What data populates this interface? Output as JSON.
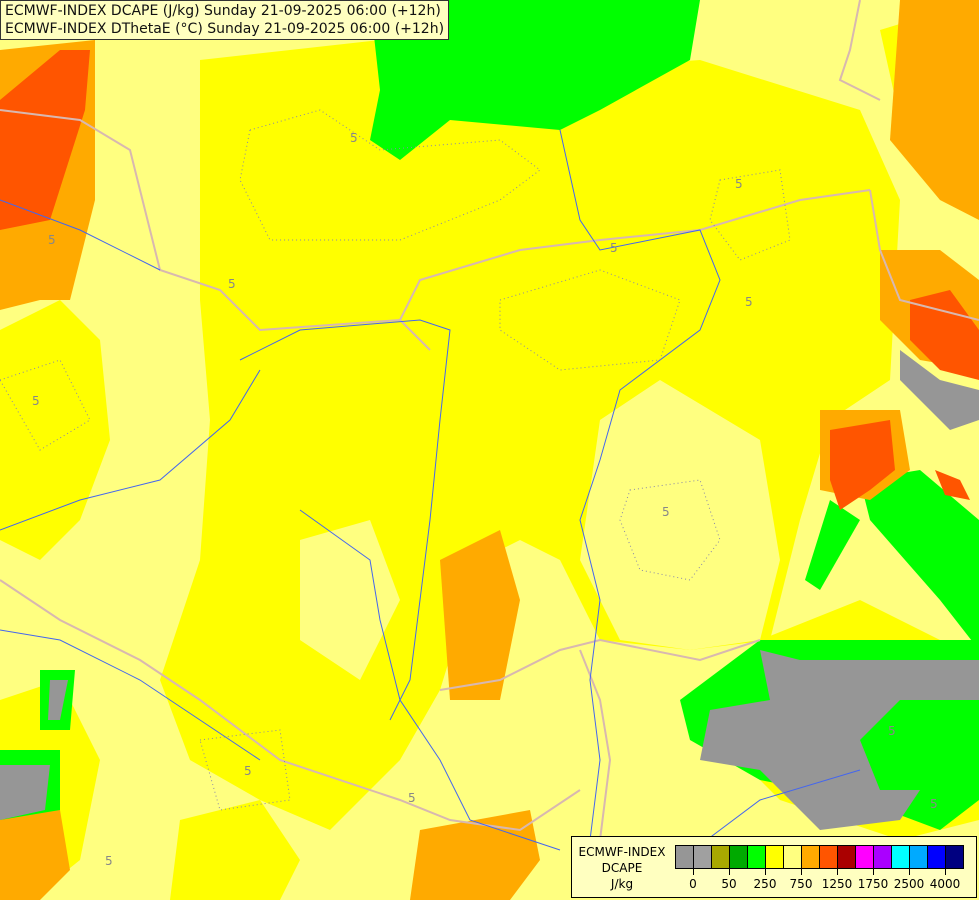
{
  "title": {
    "line1": "ECMWF-INDEX DCAPE (J/kg) Sunday 21-09-2025 06:00 (+12h)",
    "line2": "ECMWF-INDEX DThetaE (°C) Sunday 21-09-2025 06:00 (+12h)"
  },
  "legend": {
    "line1": "ECMWF-INDEX",
    "line2": "DCAPE",
    "line3": "J/kg",
    "colors": [
      "#969696",
      "#a0a0a0",
      "#a8a800",
      "#00aa00",
      "#00ff00",
      "#ffff00",
      "#ffff80",
      "#ffaa00",
      "#ff5500",
      "#aa0000",
      "#ff00ff",
      "#aa00ff",
      "#00ffff",
      "#00aaff",
      "#0000ff",
      "#000080"
    ],
    "tick_labels": [
      "0",
      "50",
      "250",
      "750",
      "1250",
      "1750",
      "2500",
      "4000"
    ]
  },
  "map": {
    "contour_label": "5",
    "colors": {
      "background": "#ffff80",
      "yellow": "#ffff00",
      "orange": "#ffaa00",
      "red_orange": "#ff5500",
      "green": "#00ff00",
      "dark_green": "#00aa00",
      "gray": "#969696",
      "border": "#d8b8b0",
      "river": "#4466ee",
      "contour": "#8888aa"
    }
  }
}
